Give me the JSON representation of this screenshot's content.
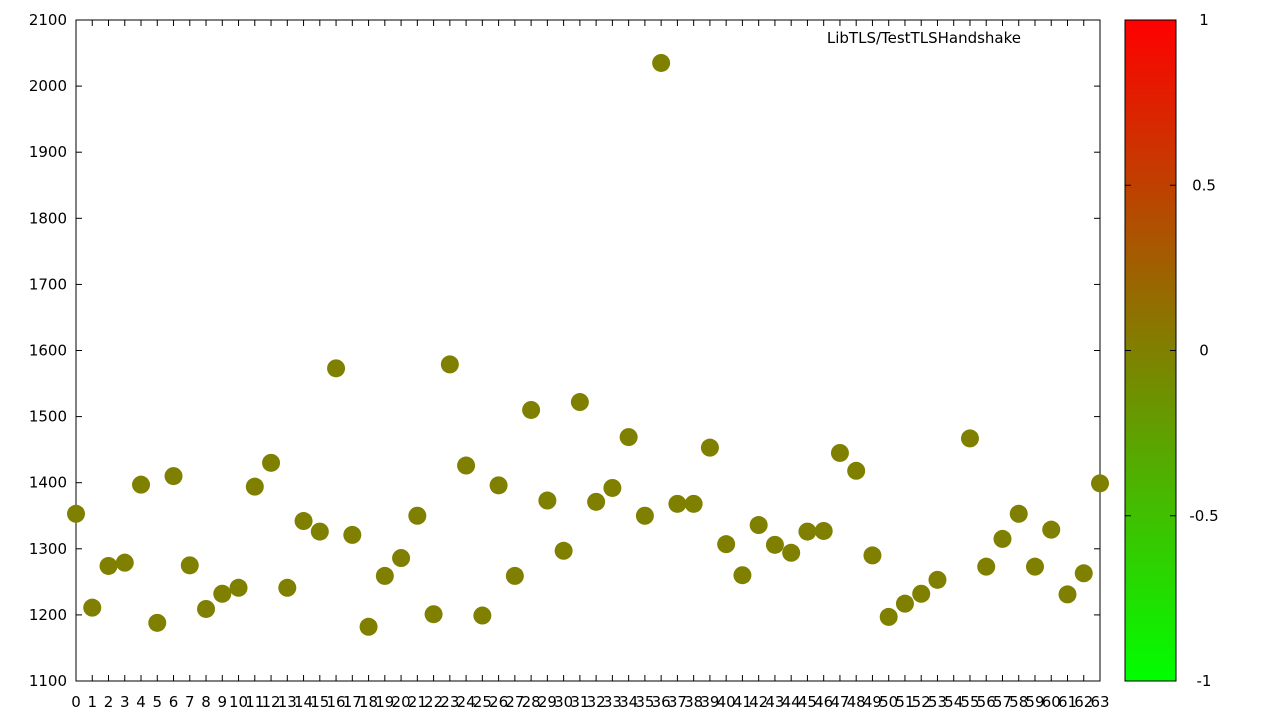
{
  "chart_data": {
    "type": "scatter",
    "legend_title": "LibTLS/TestTLSHandshake",
    "legend_position": "top-right",
    "x": [
      0,
      1,
      2,
      3,
      4,
      5,
      6,
      7,
      8,
      9,
      10,
      11,
      12,
      13,
      14,
      15,
      16,
      17,
      18,
      19,
      20,
      21,
      22,
      23,
      24,
      25,
      26,
      27,
      28,
      29,
      30,
      31,
      32,
      33,
      34,
      35,
      36,
      37,
      38,
      39,
      40,
      41,
      42,
      43,
      44,
      45,
      46,
      47,
      48,
      49,
      50,
      51,
      52,
      53,
      54,
      55,
      56,
      57,
      58,
      59,
      60,
      61,
      62,
      63
    ],
    "y": [
      1353,
      1211,
      1274,
      1279,
      1397,
      1188,
      1410,
      1275,
      1209,
      1232,
      1241,
      1394,
      1430,
      1241,
      1342,
      1326,
      1573,
      1321,
      1182,
      1259,
      1286,
      1350,
      1201,
      1579,
      1426,
      1199,
      1396,
      1259,
      1510,
      1373,
      1297,
      1522,
      1371,
      1392,
      1469,
      1350,
      2035,
      1368,
      1368,
      1453,
      1307,
      1260,
      1336,
      1306,
      1294,
      1326,
      1327,
      1445,
      1418,
      1290,
      1197,
      1217,
      1232,
      1253,
      null,
      1467,
      1273,
      1315,
      1353,
      1273,
      1329,
      1231,
      1263,
      1399
    ],
    "point_color": "#808000",
    "x_ticks": [
      "0",
      "1",
      "2",
      "3",
      "4",
      "5",
      "6",
      "7",
      "8",
      "9",
      "10",
      "11",
      "12",
      "13",
      "14",
      "15",
      "16",
      "17",
      "18",
      "19",
      "20",
      "21",
      "22",
      "23",
      "24",
      "25",
      "26",
      "27",
      "28",
      "29",
      "30",
      "31",
      "32",
      "33",
      "34",
      "35",
      "36",
      "37",
      "38",
      "39",
      "40",
      "41",
      "42",
      "43",
      "44",
      "45",
      "46",
      "47",
      "48",
      "49",
      "50",
      "51",
      "52",
      "53",
      "54",
      "55",
      "56",
      "57",
      "58",
      "59",
      "60",
      "61",
      "62",
      "63"
    ],
    "y_ticks": [
      "1100",
      "1200",
      "1300",
      "1400",
      "1500",
      "1600",
      "1700",
      "1800",
      "1900",
      "2000",
      "2100"
    ],
    "xlim": [
      0,
      63
    ],
    "ylim": [
      1100,
      2100
    ],
    "grid": false,
    "colorbar": {
      "range": [
        -1,
        1
      ],
      "ticks": [
        "1",
        "0.5",
        "0",
        "-0.5",
        "-1"
      ],
      "colors": {
        "top": "#ff0000",
        "middle": "#808000",
        "bottom": "#00ff00"
      }
    }
  }
}
